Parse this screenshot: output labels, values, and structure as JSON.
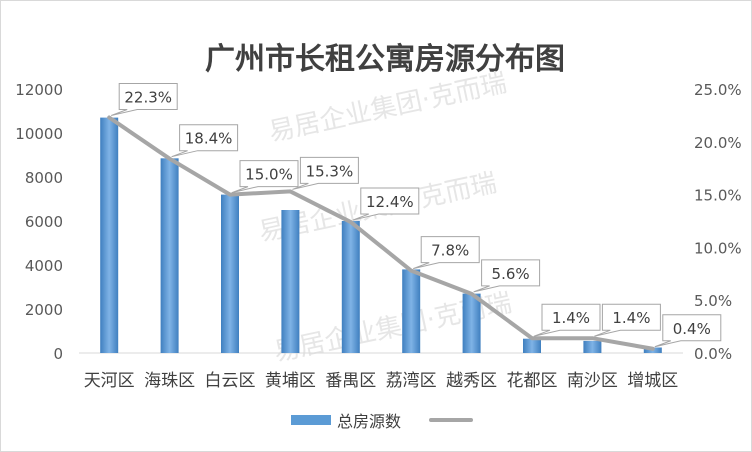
{
  "chart_data": {
    "type": "bar",
    "title": "广州市长租公寓房源分布图",
    "categories": [
      "天河区",
      "海珠区",
      "白云区",
      "黄埔区",
      "番禺区",
      "荔湾区",
      "越秀区",
      "花都区",
      "南沙区",
      "增城区"
    ],
    "series": [
      {
        "name": "总房源数",
        "type": "bar",
        "axis": "left",
        "color": "#5b9bd5",
        "values": [
          10700,
          8850,
          7200,
          6500,
          6000,
          3800,
          2700,
          650,
          550,
          250
        ]
      },
      {
        "name": "",
        "type": "line",
        "axis": "right",
        "color": "#a6a6a6",
        "values": [
          22.3,
          18.4,
          15.0,
          15.3,
          12.4,
          7.8,
          5.6,
          1.4,
          1.4,
          0.4
        ],
        "labels": [
          "22.3%",
          "18.4%",
          "15.0%",
          "15.3%",
          "12.4%",
          "7.8%",
          "5.6%",
          "1.4%",
          "1.4%",
          "0.4%"
        ]
      }
    ],
    "y_left": {
      "min": 0,
      "max": 12000,
      "ticks": [
        0,
        2000,
        4000,
        6000,
        8000,
        10000,
        12000
      ],
      "tick_labels": [
        "0",
        "2000",
        "4000",
        "6000",
        "8000",
        "10000",
        "12000"
      ]
    },
    "y_right": {
      "min": 0,
      "max": 25,
      "ticks": [
        0,
        5,
        10,
        15,
        20,
        25
      ],
      "tick_labels": [
        "0.0%",
        "5.0%",
        "10.0%",
        "15.0%",
        "20.0%",
        "25.0%"
      ]
    },
    "grid": false,
    "legend_position": "bottom",
    "watermark": "易居企业集团·克而瑞"
  }
}
